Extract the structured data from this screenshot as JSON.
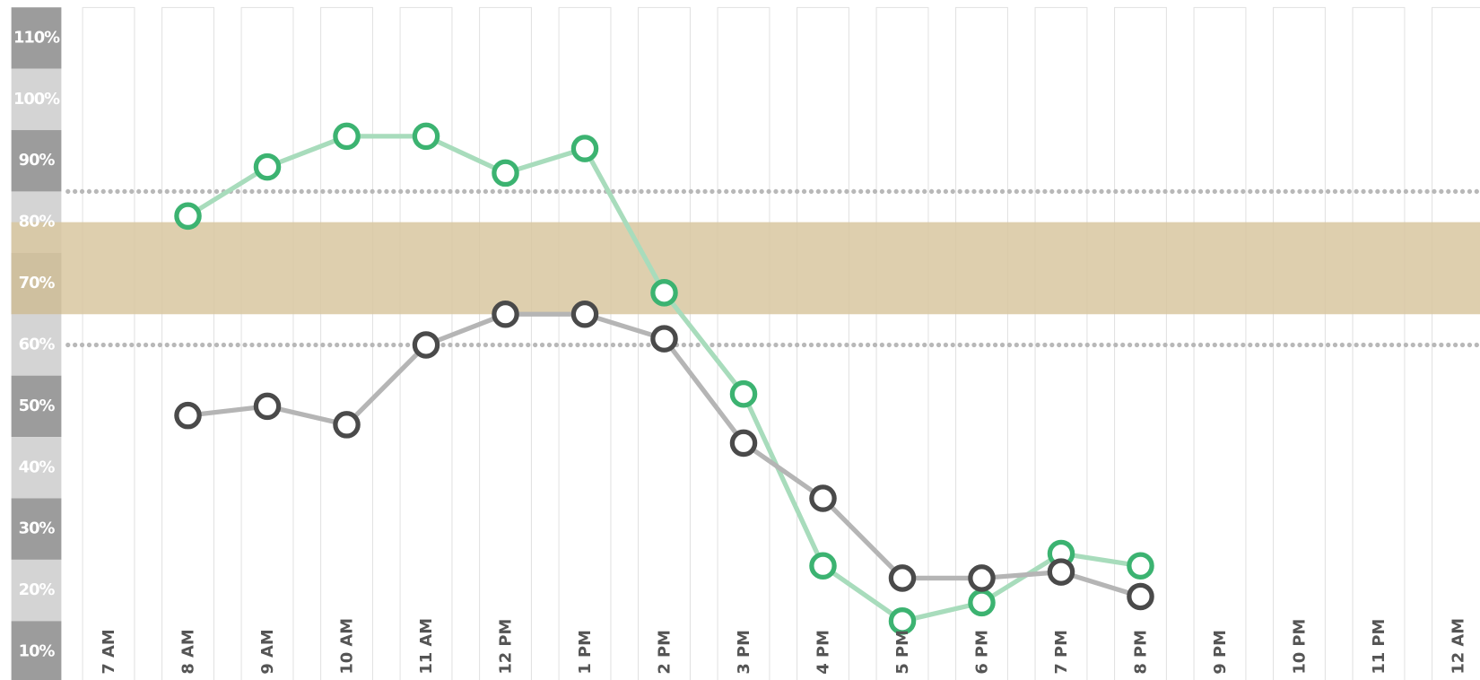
{
  "chart_data": {
    "type": "line",
    "categories": [
      "7 AM",
      "8 AM",
      "9 AM",
      "10 AM",
      "11 AM",
      "12 PM",
      "1 PM",
      "2 PM",
      "3 PM",
      "4 PM",
      "5 PM",
      "6 PM",
      "7 PM",
      "8 PM",
      "9 PM",
      "10 PM",
      "11 PM",
      "12 AM"
    ],
    "series": [
      {
        "color": "#3cb371",
        "line_color": "#a8dcbc",
        "values": [
          null,
          81,
          89,
          94,
          94,
          88,
          92,
          68.5,
          52,
          24,
          15,
          18,
          26,
          24,
          null,
          null,
          null,
          null
        ]
      },
      {
        "color": "#4a4a4a",
        "line_color": "#b5b5b5",
        "values": [
          null,
          48.5,
          50,
          47,
          60,
          65,
          65,
          61,
          44,
          35,
          22,
          22,
          23,
          19,
          null,
          null,
          null,
          null
        ]
      }
    ],
    "ylim": [
      5.4,
      116.2
    ],
    "yticks": [
      {
        "value": 110,
        "label": "110%"
      },
      {
        "value": 100,
        "label": "100%"
      },
      {
        "value": 90,
        "label": "90%"
      },
      {
        "value": 80,
        "label": "80%"
      },
      {
        "value": 70,
        "label": "70%"
      },
      {
        "value": 60,
        "label": "60%"
      },
      {
        "value": 50,
        "label": "50%"
      },
      {
        "value": 40,
        "label": "40%"
      },
      {
        "value": 30,
        "label": "30%"
      },
      {
        "value": 20,
        "label": "20%"
      },
      {
        "value": 10,
        "label": "10%"
      }
    ],
    "target_band": [
      65,
      80
    ],
    "band_color": "#d8c7a0",
    "thresholds": [
      85,
      60
    ]
  }
}
